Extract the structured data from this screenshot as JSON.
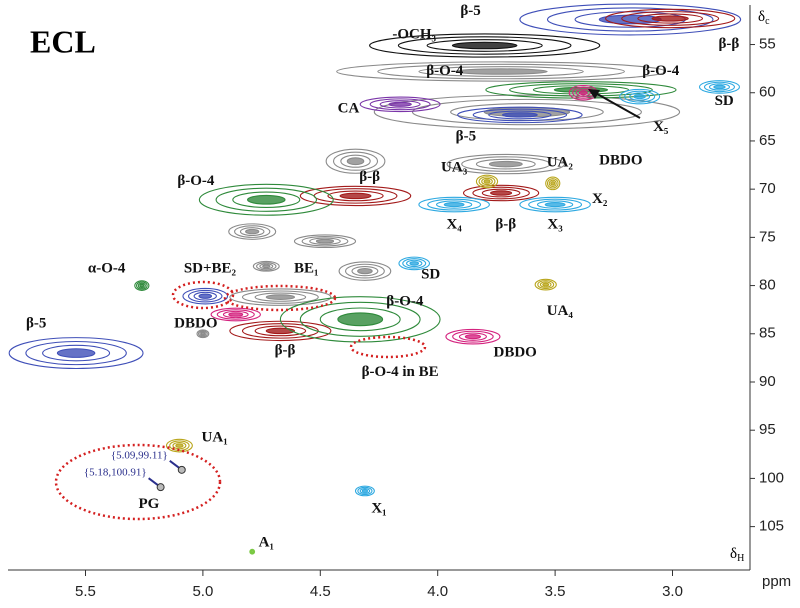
{
  "chart_data": {
    "type": "hsqc",
    "title": "ECL",
    "xlabel": "δ",
    "xlabel_sub": "H",
    "xunit": "ppm",
    "ylabel": "δ",
    "ylabel_sub": "c",
    "xlim": [
      5.83,
      2.67
    ],
    "ylim": [
      50.9,
      109.5
    ],
    "xticks": [
      5.5,
      {
        "value": 5,
        "label": "5.0"
      },
      4.5,
      {
        "value": 4,
        "label": "4.0"
      },
      3.5,
      {
        "value": 3,
        "label": "3.0"
      }
    ],
    "yticks": [
      55,
      60,
      65,
      70,
      75,
      80,
      85,
      90,
      95,
      100,
      105
    ],
    "series": [
      {
        "color": "#8a8a8a",
        "x": [
          3.73,
          3.62,
          4.35,
          3.71,
          4.73,
          4.48,
          4.31,
          4.67,
          4.79,
          5.0
        ],
        "y": [
          57.8,
          62.0,
          67.1,
          67.4,
          78.0,
          75.4,
          78.5,
          81.2,
          74.4,
          85.0
        ],
        "w": [
          1.4,
          1.3,
          0.25,
          0.5,
          0.11,
          0.26,
          0.22,
          0.43,
          0.2,
          0.05
        ],
        "h": [
          2.0,
          3.5,
          2.5,
          2.0,
          1.0,
          1.3,
          1.9,
          1.7,
          1.6,
          0.8
        ]
      },
      {
        "color": "#3f4fb8",
        "x": [
          3.18,
          5.54,
          3.65,
          4.99
        ],
        "y": [
          52.4,
          87.0,
          62.3,
          81.1
        ],
        "w": [
          0.94,
          0.57,
          0.53,
          0.19
        ],
        "h": [
          3.2,
          3.2,
          1.6,
          1.6
        ]
      },
      {
        "color": "#111111",
        "x": [
          3.8
        ],
        "y": [
          55.1
        ],
        "w": [
          0.98
        ],
        "h": [
          2.4
        ]
      },
      {
        "color": "#a31a1a",
        "x": [
          3.01,
          4.35,
          3.73,
          4.67
        ],
        "y": [
          52.3,
          70.7,
          70.4,
          84.7
        ],
        "w": [
          0.55,
          0.47,
          0.32,
          0.43
        ],
        "h": [
          1.9,
          2.0,
          1.6,
          2.0
        ]
      },
      {
        "color": "#2f8a3b",
        "x": [
          4.73,
          3.39,
          4.33,
          5.26
        ],
        "y": [
          71.1,
          59.7,
          83.5,
          80.0
        ],
        "w": [
          0.57,
          0.81,
          0.68,
          0.06
        ],
        "h": [
          3.2,
          1.7,
          4.7,
          1.0
        ]
      },
      {
        "color": "#7a35a8",
        "x": [
          4.16
        ],
        "y": [
          61.2
        ],
        "w": [
          0.34
        ],
        "h": [
          1.5
        ]
      },
      {
        "color": "#d4237f",
        "x": [
          3.38,
          3.85,
          4.86
        ],
        "y": [
          60.0,
          85.3,
          83.0
        ],
        "w": [
          0.12,
          0.23,
          0.21
        ],
        "h": [
          1.5,
          1.5,
          1.3
        ]
      },
      {
        "color": "#2ea9e1",
        "x": [
          3.93,
          3.5,
          3.14,
          2.8,
          4.1,
          4.31
        ],
        "y": [
          71.6,
          71.6,
          60.4,
          59.4,
          77.7,
          101.3
        ],
        "w": [
          0.3,
          0.3,
          0.17,
          0.17,
          0.13,
          0.08
        ],
        "h": [
          1.5,
          1.5,
          1.5,
          1.3,
          1.3,
          1.0
        ]
      },
      {
        "color": "#b9a61c",
        "x": [
          3.79,
          3.51,
          3.54,
          5.1
        ],
        "y": [
          69.2,
          69.4,
          79.9,
          96.6
        ],
        "w": [
          0.09,
          0.06,
          0.09,
          0.11
        ],
        "h": [
          1.3,
          1.3,
          1.1,
          1.3
        ]
      },
      {
        "color": "#7ac943",
        "x": [
          4.79
        ],
        "y": [
          107.6
        ],
        "w": [
          0.02
        ],
        "h": [
          0.5
        ]
      }
    ],
    "pg_points": [
      {
        "label": "{5.09,99.11}",
        "x": 5.09,
        "y": 99.11
      },
      {
        "label": "{5.18,100.91}",
        "x": 5.18,
        "y": 100.91
      }
    ],
    "annotations": [
      {
        "text": "β-5",
        "x": 3.86,
        "y": 51.6
      },
      {
        "text": "-OCH₃",
        "x": 4.1,
        "y": 54.0
      },
      {
        "text": "β-β",
        "x": 2.76,
        "y": 55.0
      },
      {
        "text": "β-O-4",
        "x": 3.97,
        "y": 57.8
      },
      {
        "text": "β-O-4",
        "x": 3.05,
        "y": 57.8
      },
      {
        "text": "SD",
        "x": 2.78,
        "y": 60.9
      },
      {
        "text": "CA",
        "x": 4.38,
        "y": 61.7
      },
      {
        "text": "X₅",
        "x": 3.05,
        "y": 63.6
      },
      {
        "text": "β-5",
        "x": 3.88,
        "y": 64.6
      },
      {
        "text": "DBDO",
        "x": 3.22,
        "y": 67.1
      },
      {
        "text": "UA₃",
        "x": 3.93,
        "y": 67.8
      },
      {
        "text": "UA₂",
        "x": 3.48,
        "y": 67.3
      },
      {
        "text": "β-O-4",
        "x": 5.03,
        "y": 69.2
      },
      {
        "text": "β-β",
        "x": 4.29,
        "y": 68.8
      },
      {
        "text": "X₂",
        "x": 3.31,
        "y": 71.1
      },
      {
        "text": "X₄",
        "x": 3.93,
        "y": 73.7
      },
      {
        "text": "β-β",
        "x": 3.71,
        "y": 73.7
      },
      {
        "text": "X₃",
        "x": 3.5,
        "y": 73.7
      },
      {
        "text": "α-O-4",
        "x": 5.41,
        "y": 78.3
      },
      {
        "text": "SD+BE₂",
        "x": 4.97,
        "y": 78.3
      },
      {
        "text": "BE₁",
        "x": 4.56,
        "y": 78.3
      },
      {
        "text": "SD",
        "x": 4.03,
        "y": 78.9
      },
      {
        "text": "UA₄",
        "x": 3.48,
        "y": 82.7
      },
      {
        "text": "DBDO",
        "x": 5.03,
        "y": 84.0
      },
      {
        "text": "β-O-4",
        "x": 4.14,
        "y": 81.7
      },
      {
        "text": "β-5",
        "x": 5.71,
        "y": 84.0
      },
      {
        "text": "β-β",
        "x": 4.65,
        "y": 86.8
      },
      {
        "text": "DBDO",
        "x": 3.67,
        "y": 87.0
      },
      {
        "text": "β-O-4 in BE",
        "x": 4.16,
        "y": 89.0
      },
      {
        "text": "UA₁",
        "x": 4.95,
        "y": 95.8
      },
      {
        "text": "PG",
        "x": 5.23,
        "y": 102.7
      },
      {
        "text": "X₁",
        "x": 4.25,
        "y": 103.2
      },
      {
        "text": "A₁",
        "x": 4.73,
        "y": 106.7
      }
    ]
  }
}
